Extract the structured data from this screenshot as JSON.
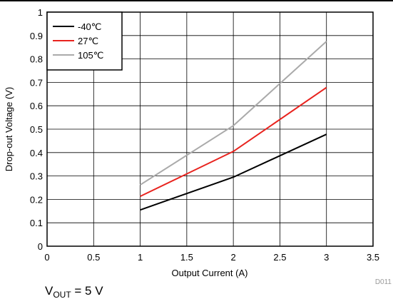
{
  "chart_data": {
    "type": "line",
    "xlabel": "Output Current (A)",
    "ylabel": "Drop-out Voltage (V)",
    "xlim": [
      0,
      3.5
    ],
    "ylim": [
      0,
      1
    ],
    "xticks": [
      "0",
      "0.5",
      "1",
      "1.5",
      "2",
      "2.5",
      "3",
      "3.5"
    ],
    "yticks": [
      "0",
      "0.1",
      "0.2",
      "0.3",
      "0.4",
      "0.5",
      "0.6",
      "0.7",
      "0.8",
      "0.9",
      "1"
    ],
    "grid": true,
    "legend_position": "top-left",
    "series": [
      {
        "name": "-40℃",
        "color": "#000000",
        "x": [
          1,
          2,
          3
        ],
        "y": [
          0.155,
          0.295,
          0.478
        ]
      },
      {
        "name": "27℃",
        "color": "#e8231e",
        "x": [
          1,
          2,
          3
        ],
        "y": [
          0.213,
          0.405,
          0.678
        ]
      },
      {
        "name": "105℃",
        "color": "#aaaaaa",
        "x": [
          1,
          2,
          3
        ],
        "y": [
          0.262,
          0.515,
          0.875
        ]
      }
    ]
  },
  "figure_id": "D011",
  "caption": {
    "prefix": "V",
    "subscript": "OUT",
    "suffix": " = 5 V"
  }
}
